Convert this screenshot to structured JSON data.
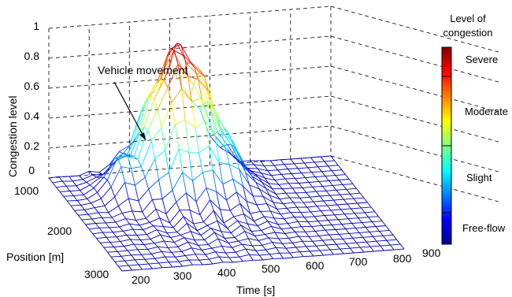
{
  "chart_data": {
    "type": "surface",
    "z_axis": {
      "label": "Congestion level",
      "range": [
        0,
        1
      ],
      "ticks": [
        "0",
        "0.2",
        "0.4",
        "0.6",
        "0.8",
        "1"
      ]
    },
    "position_axis": {
      "label": "Position [m]",
      "unit": "m",
      "range": [
        1000,
        3000
      ],
      "ticks": [
        "1000",
        "2000",
        "3000"
      ]
    },
    "time_axis": {
      "label": "Time [s]",
      "unit": "s",
      "range": [
        200,
        900
      ],
      "ticks": [
        "200",
        "300",
        "400",
        "500",
        "600",
        "700",
        "800",
        "900"
      ]
    },
    "annotation": "Vehicle movement",
    "colorbar": {
      "title_line1": "Level of",
      "title_line2": "congestion",
      "levels": [
        "Severe",
        "Moderate",
        "Slight",
        "Free-flow"
      ],
      "colormap": "jet",
      "colors": [
        "#00008f",
        "#0000ff",
        "#0080ff",
        "#00ffff",
        "#80ff80",
        "#ffff00",
        "#ff8000",
        "#ff0000",
        "#800000"
      ]
    },
    "surface": {
      "time_centers": [
        200,
        225,
        250,
        275,
        300,
        325,
        350,
        375,
        400,
        425,
        450,
        475,
        500,
        525,
        550,
        575,
        600,
        625,
        650,
        675,
        700,
        725,
        750,
        775,
        800,
        825,
        850,
        875,
        900
      ],
      "position_centers": [
        1000,
        1100,
        1200,
        1300,
        1400,
        1500,
        1600,
        1700,
        1800,
        1900,
        2000,
        2100,
        2200,
        2300,
        2400,
        2500,
        2600,
        2700,
        2800,
        2900,
        3000
      ],
      "description_peak": {
        "time": 500,
        "position": 1400,
        "level": 0.88
      }
    }
  }
}
